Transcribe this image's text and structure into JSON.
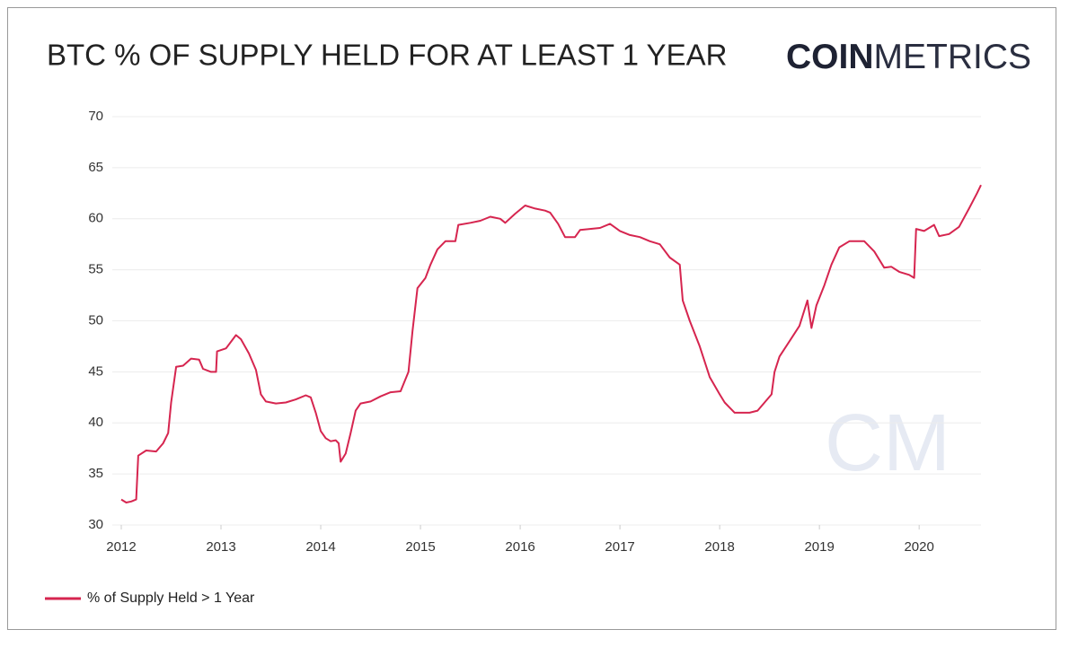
{
  "chart_data": {
    "type": "line",
    "title": "BTC % OF SUPPLY HELD FOR AT LEAST 1 YEAR",
    "logo": {
      "bold": "COIN",
      "light": "METRICS"
    },
    "watermark": "CM",
    "x": [
      2012.0,
      2012.05,
      2012.1,
      2012.15,
      2012.17,
      2012.25,
      2012.35,
      2012.42,
      2012.47,
      2012.5,
      2012.55,
      2012.62,
      2012.7,
      2012.78,
      2012.82,
      2012.9,
      2012.95,
      2012.96,
      2013.05,
      2013.15,
      2013.2,
      2013.28,
      2013.35,
      2013.4,
      2013.45,
      2013.55,
      2013.65,
      2013.75,
      2013.85,
      2013.9,
      2013.95,
      2014.0,
      2014.05,
      2014.1,
      2014.15,
      2014.18,
      2014.2,
      2014.25,
      2014.3,
      2014.35,
      2014.4,
      2014.5,
      2014.6,
      2014.7,
      2014.8,
      2014.88,
      2014.92,
      2014.97,
      2015.05,
      2015.1,
      2015.17,
      2015.25,
      2015.35,
      2015.38,
      2015.5,
      2015.6,
      2015.7,
      2015.8,
      2015.85,
      2015.95,
      2016.05,
      2016.15,
      2016.25,
      2016.3,
      2016.38,
      2016.45,
      2016.55,
      2016.6,
      2016.7,
      2016.8,
      2016.9,
      2017.0,
      2017.1,
      2017.2,
      2017.3,
      2017.4,
      2017.5,
      2017.6,
      2017.63,
      2017.7,
      2017.8,
      2017.9,
      2018.0,
      2018.05,
      2018.1,
      2018.15,
      2018.3,
      2018.38,
      2018.45,
      2018.52,
      2018.55,
      2018.6,
      2018.7,
      2018.8,
      2018.88,
      2018.92,
      2018.97,
      2019.05,
      2019.12,
      2019.2,
      2019.3,
      2019.45,
      2019.55,
      2019.65,
      2019.72,
      2019.8,
      2019.9,
      2019.95,
      2019.97,
      2020.05,
      2020.15,
      2020.2,
      2020.3,
      2020.4,
      2020.5,
      2020.58,
      2020.62
    ],
    "series": [
      {
        "name": "% of Supply Held > 1 Year",
        "color": "#d6254f",
        "values": [
          32.5,
          32.2,
          32.3,
          32.5,
          36.8,
          37.3,
          37.2,
          38.0,
          39.0,
          42.0,
          45.5,
          45.6,
          46.3,
          46.2,
          45.3,
          45.0,
          45.0,
          47.0,
          47.3,
          48.6,
          48.2,
          46.8,
          45.2,
          42.8,
          42.1,
          41.9,
          42.0,
          42.3,
          42.7,
          42.5,
          41.0,
          39.2,
          38.5,
          38.2,
          38.3,
          38.0,
          36.2,
          37.0,
          39.0,
          41.2,
          41.9,
          42.1,
          42.6,
          43.0,
          43.1,
          45.0,
          49.0,
          53.2,
          54.2,
          55.5,
          57.0,
          57.8,
          57.8,
          59.4,
          59.6,
          59.8,
          60.2,
          60.0,
          59.6,
          60.5,
          61.3,
          61.0,
          60.8,
          60.6,
          59.5,
          58.2,
          58.2,
          58.9,
          59.0,
          59.1,
          59.5,
          58.8,
          58.4,
          58.2,
          57.8,
          57.5,
          56.2,
          55.5,
          52.0,
          50.0,
          47.5,
          44.5,
          42.8,
          42.0,
          41.5,
          41.0,
          41.0,
          41.2,
          42.0,
          42.8,
          45.0,
          46.5,
          48.0,
          49.5,
          52.0,
          49.3,
          51.5,
          53.5,
          55.5,
          57.2,
          57.8,
          57.8,
          56.8,
          55.2,
          55.3,
          54.8,
          54.5,
          54.2,
          59.0,
          58.8,
          59.4,
          58.3,
          58.5,
          59.2,
          61.0,
          62.5,
          63.3
        ]
      }
    ],
    "xlim": [
      2011.91,
      2020.62
    ],
    "xticks": [
      2012,
      2013,
      2014,
      2015,
      2016,
      2017,
      2018,
      2019,
      2020
    ],
    "ylim": [
      30,
      70
    ],
    "yticks": [
      30,
      35,
      40,
      45,
      50,
      55,
      60,
      65,
      70
    ],
    "grid": true
  }
}
